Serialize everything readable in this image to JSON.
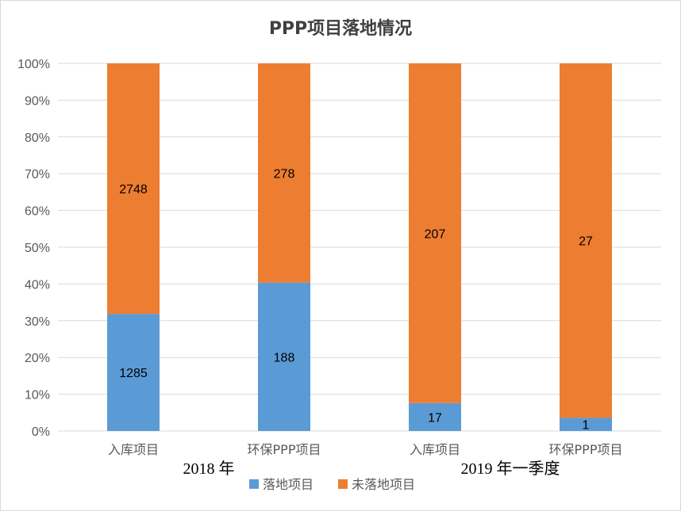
{
  "chart_data": {
    "type": "bar",
    "stacked": "percent",
    "title": "PPP项目落地情况",
    "categories": [
      "入库项目",
      "环保PPP项目",
      "入库项目",
      "环保PPP项目"
    ],
    "groups": [
      {
        "label": "2018 年",
        "categories": [
          0,
          1
        ]
      },
      {
        "label": "2019 年一季度",
        "categories": [
          2,
          3
        ]
      }
    ],
    "series": [
      {
        "name": "落地项目",
        "values": [
          1285,
          188,
          17,
          1
        ],
        "color": "#5b9bd5"
      },
      {
        "name": "未落地项目",
        "values": [
          2748,
          278,
          207,
          27
        ],
        "color": "#ed7d31"
      }
    ],
    "y_ticks": [
      "0%",
      "10%",
      "20%",
      "30%",
      "40%",
      "50%",
      "60%",
      "70%",
      "80%",
      "90%",
      "100%"
    ],
    "ylim": [
      0,
      100
    ],
    "grid": true,
    "legend_position": "bottom",
    "gridline_color": "#d9d9d9",
    "axis_text_color": "#595959"
  }
}
